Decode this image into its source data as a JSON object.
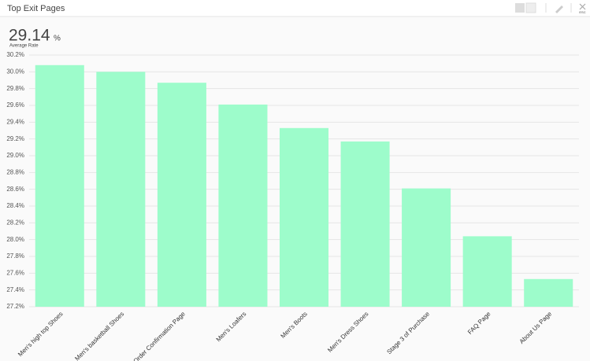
{
  "header": {
    "title": "Top Exit Pages",
    "close_hint": "ESC"
  },
  "summary": {
    "value": 29.14,
    "unit": "%",
    "label": "Average Rate"
  },
  "chart_data": {
    "type": "bar",
    "categories": [
      "Men's high top Shoes",
      "Men's basketball Shoes",
      "Order Confirmation Page",
      "Men's Loafers",
      "Men's Boots",
      "Men's Dress Shoes",
      "Stage 3 of Purchase",
      "FAQ Page",
      "About Us Page"
    ],
    "values": [
      30.08,
      30.0,
      29.87,
      29.61,
      29.33,
      29.17,
      28.61,
      28.04,
      27.53
    ],
    "color": "#9dfccb",
    "ylim": [
      27.2,
      30.2
    ],
    "yticks": [
      {
        "value": 27.2,
        "label": "27.2%"
      },
      {
        "value": 27.4,
        "label": "27.4%"
      },
      {
        "value": 27.6,
        "label": "27.6%"
      },
      {
        "value": 27.8,
        "label": "27.8%"
      },
      {
        "value": 28.0,
        "label": "28.0%"
      },
      {
        "value": 28.2,
        "label": "28.2%"
      },
      {
        "value": 28.4,
        "label": "28.4%"
      },
      {
        "value": 28.6,
        "label": "28.6%"
      },
      {
        "value": 28.8,
        "label": "28.8%"
      },
      {
        "value": 29.0,
        "label": "29.0%"
      },
      {
        "value": 29.2,
        "label": "29.2%"
      },
      {
        "value": 29.4,
        "label": "29.4%"
      },
      {
        "value": 29.6,
        "label": "29.6%"
      },
      {
        "value": 29.8,
        "label": "29.8%"
      },
      {
        "value": 30.0,
        "label": "30.0%"
      },
      {
        "value": 30.2,
        "label": "30.2%"
      }
    ],
    "grid": true
  }
}
